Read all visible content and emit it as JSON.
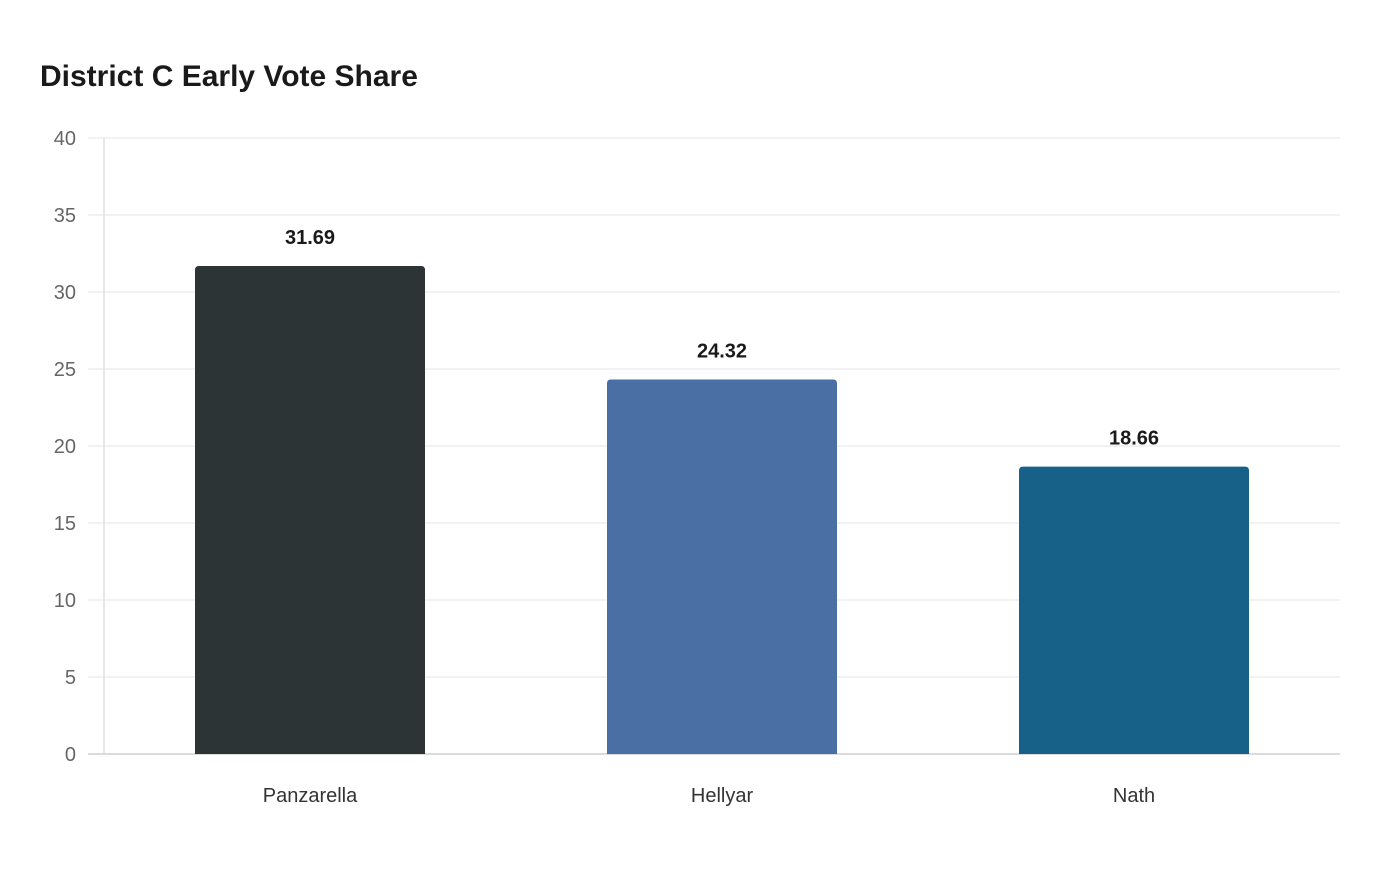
{
  "chart_data": {
    "type": "bar",
    "title": "District C Early Vote Share",
    "xlabel": "",
    "ylabel": "",
    "categories": [
      "Panzarella",
      "Hellyar",
      "Nath"
    ],
    "values": [
      31.69,
      24.32,
      18.66
    ],
    "data_labels": [
      "31.69",
      "24.32",
      "18.66"
    ],
    "colors": [
      "#2d3436",
      "#4a6fa5",
      "#176087"
    ],
    "ylim": [
      0,
      40
    ],
    "yticks": [
      0,
      5,
      10,
      15,
      20,
      25,
      30,
      35,
      40
    ],
    "grid": true,
    "legend": "none"
  }
}
